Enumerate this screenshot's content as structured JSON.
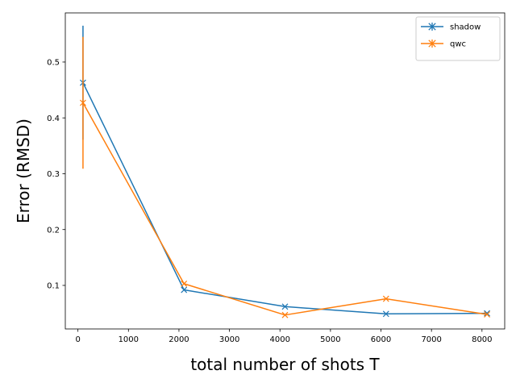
{
  "chart_data": {
    "type": "line",
    "title": "",
    "xlabel": "total number of shots T",
    "ylabel": "Error (RMSD)",
    "xlim": [
      -250,
      8450
    ],
    "ylim": [
      0.022,
      0.588
    ],
    "xticks": [
      0,
      1000,
      2000,
      3000,
      4000,
      5000,
      6000,
      7000,
      8000
    ],
    "yticks": [
      0.1,
      0.2,
      0.3,
      0.4,
      0.5
    ],
    "grid": false,
    "legend": {
      "position": "top-right"
    },
    "series": [
      {
        "name": "shadow",
        "color": "#1f77b4",
        "marker": "x",
        "x": [
          100,
          2100,
          4100,
          6100,
          8100
        ],
        "y": [
          0.463,
          0.092,
          0.062,
          0.049,
          0.05
        ],
        "err": [
          0.102,
          0,
          0,
          0,
          0
        ]
      },
      {
        "name": "qwc",
        "color": "#ff7f0e",
        "marker": "x",
        "x": [
          100,
          2100,
          4100,
          6100,
          8100
        ],
        "y": [
          0.427,
          0.103,
          0.047,
          0.076,
          0.048
        ],
        "err": [
          0.118,
          0,
          0,
          0,
          0
        ]
      }
    ]
  }
}
